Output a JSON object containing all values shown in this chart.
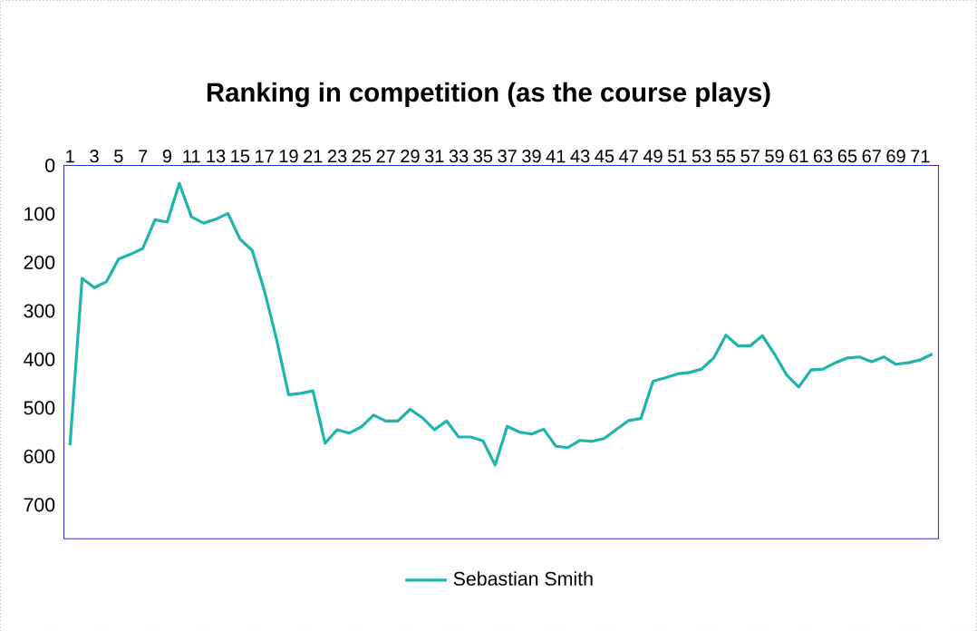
{
  "chart_data": {
    "type": "line",
    "title": "Ranking in competition (as the course plays)",
    "categories": [
      "1",
      null,
      "3",
      null,
      "5",
      null,
      "7",
      null,
      "9",
      null,
      "11",
      null,
      "13",
      null,
      "15",
      null,
      "17",
      null,
      "19",
      null,
      "21",
      null,
      "23",
      null,
      "25",
      null,
      "27",
      null,
      "29",
      null,
      "31",
      null,
      "33",
      null,
      "35",
      null,
      "37",
      null,
      "39",
      null,
      "41",
      null,
      "43",
      null,
      "45",
      null,
      "47",
      null,
      "49",
      null,
      "51",
      null,
      "53",
      null,
      "55",
      null,
      "57",
      null,
      "59",
      null,
      "61",
      null,
      "63",
      null,
      "65",
      null,
      "67",
      null,
      "69",
      null,
      "71",
      null
    ],
    "series": [
      {
        "name": "Sebastian Smith",
        "color": "#1fb5ad",
        "values": [
          577,
          233,
          252,
          240,
          193,
          183,
          171,
          112,
          117,
          37,
          106,
          119,
          111,
          99,
          152,
          175,
          258,
          358,
          473,
          470,
          465,
          573,
          545,
          552,
          539,
          515,
          527,
          527,
          503,
          520,
          545,
          527,
          560,
          560,
          568,
          618,
          538,
          550,
          554,
          544,
          579,
          582,
          567,
          569,
          563,
          544,
          526,
          522,
          445,
          438,
          430,
          427,
          420,
          397,
          350,
          372,
          372,
          351,
          389,
          432,
          457,
          422,
          420,
          407,
          397,
          395,
          405,
          395,
          410,
          407,
          401,
          389
        ]
      }
    ],
    "ylim": [
      770,
      0
    ],
    "yticks": [
      0,
      100,
      200,
      300,
      400,
      500,
      600,
      700
    ],
    "grid": false,
    "legend": "bottom",
    "marker": "none",
    "line_style": "solid"
  }
}
